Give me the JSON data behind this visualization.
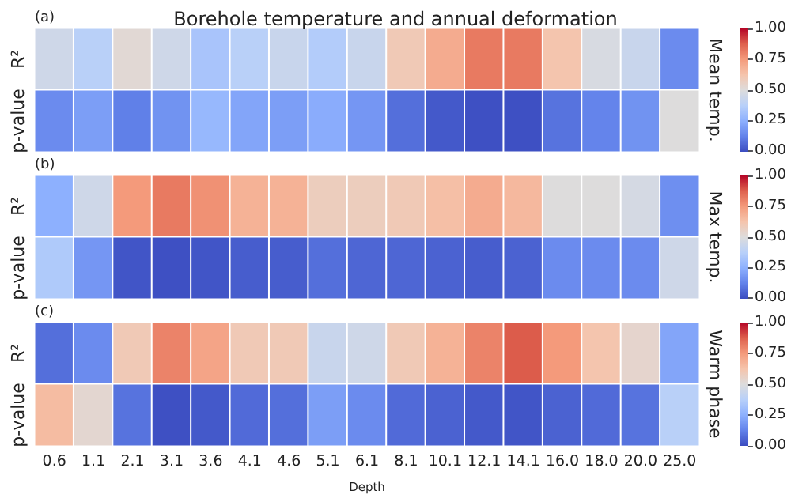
{
  "chart_data": [
    {
      "type": "heatmap",
      "title": "Borehole temperature and annual deformation",
      "clabel": "Mean temp.",
      "annotations": [
        "(a)"
      ],
      "tick_labels": "y",
      "categories": [
        "0.6",
        "1.1",
        "2.1",
        "3.1",
        "3.6",
        "4.1",
        "4.6",
        "5.1",
        "6.1",
        "8.1",
        "10.1",
        "12.1",
        "14.1",
        "16.0",
        "18.0",
        "20.0",
        "25.0"
      ],
      "y_categories": [
        "R²",
        "p-value"
      ],
      "cells": [
        [
          0.45,
          0.38,
          0.52,
          0.45,
          0.33,
          0.38,
          0.43,
          0.36,
          0.43,
          0.6,
          0.7,
          0.82,
          0.82,
          0.62,
          0.48,
          0.43,
          0.15
        ],
        [
          0.15,
          0.2,
          0.12,
          0.17,
          0.28,
          0.22,
          0.2,
          0.24,
          0.18,
          0.08,
          0.03,
          0.01,
          0.01,
          0.09,
          0.13,
          0.17,
          0.5
        ]
      ],
      "clim": [
        0,
        1
      ],
      "cticks": [
        {
          "value": 0,
          "label": "0.00"
        },
        {
          "value": 0.25,
          "label": "0.25"
        },
        {
          "value": 0.5,
          "label": "0.50"
        },
        {
          "value": 0.75,
          "label": "0.75"
        },
        {
          "value": 1,
          "label": "1.00"
        }
      ]
    },
    {
      "type": "heatmap",
      "clabel": "Max temp.",
      "annotations": [
        "(b)"
      ],
      "tick_labels": "y",
      "categories": [
        "0.6",
        "1.1",
        "2.1",
        "3.1",
        "3.6",
        "4.1",
        "4.6",
        "5.1",
        "6.1",
        "8.1",
        "10.1",
        "12.1",
        "14.1",
        "16.0",
        "18.0",
        "20.0",
        "25.0"
      ],
      "y_categories": [
        "R²",
        "p-value"
      ],
      "cells": [
        [
          0.25,
          0.45,
          0.75,
          0.82,
          0.77,
          0.68,
          0.68,
          0.58,
          0.58,
          0.6,
          0.64,
          0.7,
          0.66,
          0.5,
          0.5,
          0.47,
          0.16
        ],
        [
          0.35,
          0.18,
          0.02,
          0.01,
          0.02,
          0.04,
          0.04,
          0.08,
          0.06,
          0.06,
          0.05,
          0.04,
          0.05,
          0.15,
          0.15,
          0.15,
          0.45
        ]
      ],
      "clim": [
        0,
        1
      ],
      "cticks": [
        {
          "value": 0,
          "label": "0.00"
        },
        {
          "value": 0.25,
          "label": "0.25"
        },
        {
          "value": 0.5,
          "label": "0.50"
        },
        {
          "value": 0.75,
          "label": "0.75"
        },
        {
          "value": 1,
          "label": "1.00"
        }
      ]
    },
    {
      "type": "heatmap",
      "clabel": "Warm phase",
      "annotations": [
        "(c)"
      ],
      "xlabel": "Depth",
      "categories": [
        "0.6",
        "1.1",
        "2.1",
        "3.1",
        "3.6",
        "4.1",
        "4.6",
        "5.1",
        "6.1",
        "8.1",
        "10.1",
        "12.1",
        "14.1",
        "16.0",
        "18.0",
        "20.0",
        "25.0"
      ],
      "y_categories": [
        "R²",
        "p-value"
      ],
      "cells": [
        [
          0.08,
          0.15,
          0.6,
          0.8,
          0.72,
          0.6,
          0.6,
          0.43,
          0.45,
          0.6,
          0.68,
          0.8,
          0.88,
          0.75,
          0.62,
          0.54,
          0.22
        ],
        [
          0.65,
          0.53,
          0.09,
          0.01,
          0.03,
          0.07,
          0.08,
          0.2,
          0.15,
          0.07,
          0.05,
          0.03,
          0.02,
          0.05,
          0.07,
          0.09,
          0.38
        ]
      ],
      "clim": [
        0,
        1
      ],
      "cticks": [
        {
          "value": 0,
          "label": "0.00"
        },
        {
          "value": 0.25,
          "label": "0.25"
        },
        {
          "value": 0.5,
          "label": "0.50"
        },
        {
          "value": 0.75,
          "label": "0.75"
        },
        {
          "value": 1,
          "label": "1.00"
        }
      ]
    }
  ]
}
